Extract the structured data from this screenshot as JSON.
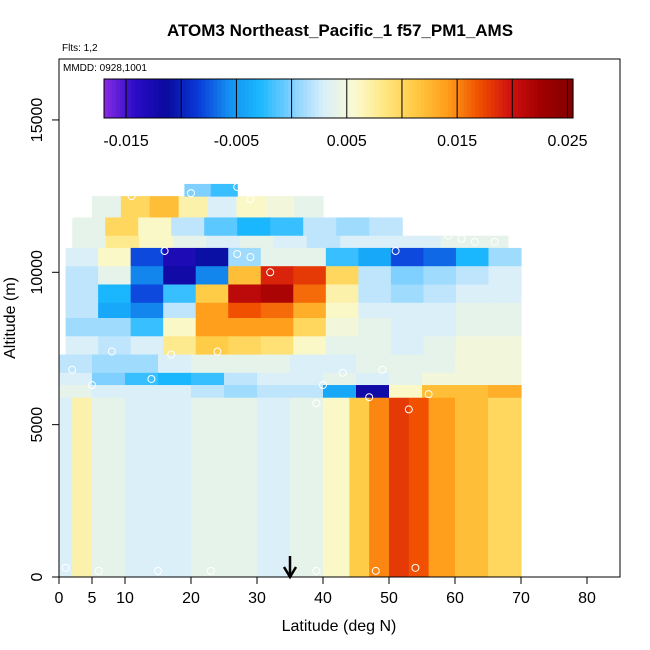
{
  "chart_data": {
    "type": "heatmap",
    "title": "ATOM3 Northeast_Pacific_1 f57_PM1_AMS",
    "flights_note": "Flts: 1,2",
    "date_note": "MMDD: 0928,1001",
    "xlabel": "Latitude (deg N)",
    "ylabel": "Altitude (m)",
    "xlim": [
      0,
      85
    ],
    "ylim": [
      0,
      17000
    ],
    "x_ticks": [
      0,
      5,
      10,
      20,
      30,
      40,
      50,
      60,
      70,
      80
    ],
    "y_ticks": [
      0,
      5000,
      10000,
      15000
    ],
    "colorbar": {
      "range": [
        -0.017,
        0.0255
      ],
      "tick_values": [
        -0.015,
        -0.005,
        0.005,
        0.015,
        0.025
      ],
      "tick_labels": [
        "-0.015",
        "-0.005",
        "0.005",
        "0.015",
        "0.025"
      ],
      "colors": [
        "#8a2be2",
        "#2a0cc8",
        "#0a0a9c",
        "#0a3ad8",
        "#1490f0",
        "#1ab8ff",
        "#7fd0ff",
        "#d8eefa",
        "#fafad2",
        "#ffe680",
        "#ffc840",
        "#ff9c1a",
        "#f05000",
        "#d01010",
        "#a00000",
        "#800000"
      ]
    },
    "marker_latitude": 35,
    "layers": [
      {
        "alt": [
          11800,
          12500
        ],
        "lat": [
          5,
          40
        ],
        "values": [
          0.004,
          0.01,
          0.012,
          0.007,
          0.003,
          0.006,
          0.005,
          0.004
        ]
      },
      {
        "alt": [
          12500,
          12900
        ],
        "lat": [
          19,
          27
        ],
        "values": [
          0.0,
          -0.002
        ]
      },
      {
        "alt": [
          11200,
          11800
        ],
        "lat": [
          2,
          52
        ],
        "values": [
          0.004,
          0.01,
          0.006,
          0.002,
          -0.001,
          -0.003,
          -0.002,
          0.002,
          0.001,
          0.002
        ]
      },
      {
        "alt": [
          10800,
          11200
        ],
        "lat": [
          2,
          68
        ],
        "values": [
          0.004,
          0.008,
          0.006,
          0.004,
          0.003,
          0.004,
          0.003,
          0.002,
          0.003,
          0.003,
          0.003,
          0.004,
          0.004
        ]
      },
      {
        "alt": [
          10200,
          10800
        ],
        "lat": [
          1,
          70
        ],
        "values": [
          0.003,
          0.006,
          -0.008,
          -0.013,
          -0.011,
          0.001,
          0.004,
          0.004,
          -0.002,
          -0.004,
          -0.008,
          -0.007,
          -0.003,
          0.001
        ]
      },
      {
        "alt": [
          9600,
          10200
        ],
        "lat": [
          1,
          70
        ],
        "values": [
          0.002,
          0.004,
          -0.006,
          -0.012,
          -0.006,
          0.012,
          0.019,
          0.018,
          0.01,
          0.002,
          0.0,
          0.001,
          0.002,
          0.003
        ]
      },
      {
        "alt": [
          9000,
          9600
        ],
        "lat": [
          1,
          70
        ],
        "values": [
          0.002,
          -0.003,
          -0.008,
          -0.002,
          0.011,
          0.021,
          0.022,
          0.016,
          0.007,
          0.002,
          0.001,
          0.002,
          0.003,
          0.003
        ]
      },
      {
        "alt": [
          8500,
          9000
        ],
        "lat": [
          1,
          70
        ],
        "values": [
          0.002,
          -0.004,
          -0.006,
          0.002,
          0.014,
          0.017,
          0.016,
          0.013,
          0.006,
          0.003,
          0.003,
          0.003,
          0.004,
          0.004
        ]
      },
      {
        "alt": [
          7900,
          8500
        ],
        "lat": [
          1,
          70
        ],
        "values": [
          0.001,
          0.001,
          -0.002,
          0.006,
          0.014,
          0.014,
          0.014,
          0.01,
          0.005,
          0.004,
          0.003,
          0.003,
          0.004,
          0.004
        ]
      },
      {
        "alt": [
          7300,
          7900
        ],
        "lat": [
          1,
          70
        ],
        "values": [
          0.003,
          0.002,
          0.003,
          0.008,
          0.011,
          0.01,
          0.009,
          0.006,
          0.004,
          0.004,
          0.003,
          0.004,
          0.005,
          0.005
        ]
      },
      {
        "alt": [
          6700,
          7300
        ],
        "lat": [
          0,
          70
        ],
        "values": [
          0.002,
          0.001,
          0.001,
          0.003,
          0.004,
          0.004,
          0.004,
          0.003,
          0.003,
          0.004,
          0.004,
          0.004,
          0.005,
          0.005
        ]
      },
      {
        "alt": [
          6300,
          6700
        ],
        "lat": [
          0,
          70
        ],
        "values": [
          0.003,
          0.0,
          -0.002,
          -0.003,
          -0.002,
          0.002,
          0.003,
          0.003,
          0.004,
          0.003,
          0.004,
          0.005,
          0.005,
          0.005
        ]
      },
      {
        "alt": [
          5900,
          6300
        ],
        "lat": [
          0,
          70
        ],
        "values": [
          0.004,
          0.003,
          0.003,
          0.003,
          0.002,
          0.001,
          0.002,
          0.002,
          -0.004,
          -0.012,
          0.006,
          0.012,
          0.012,
          0.013
        ]
      }
    ],
    "lower_region": {
      "alt": [
        0,
        5900
      ],
      "lat_bins": [
        0,
        2,
        5,
        10,
        15,
        20,
        25,
        30,
        35,
        40,
        44,
        47,
        50,
        53,
        56,
        60,
        65,
        70
      ],
      "values": [
        0.003,
        0.007,
        0.004,
        0.003,
        0.003,
        0.004,
        0.004,
        0.003,
        0.004,
        0.006,
        0.011,
        0.015,
        0.018,
        0.017,
        0.014,
        0.012,
        0.01
      ]
    },
    "sample_points": [
      {
        "lat": 11,
        "alt": 12500
      },
      {
        "lat": 20,
        "alt": 12600
      },
      {
        "lat": 27,
        "alt": 12800
      },
      {
        "lat": 29,
        "alt": 12400
      },
      {
        "lat": 2,
        "alt": 11900
      },
      {
        "lat": 16,
        "alt": 10700
      },
      {
        "lat": 27,
        "alt": 10600
      },
      {
        "lat": 29,
        "alt": 10500
      },
      {
        "lat": 32,
        "alt": 10000
      },
      {
        "lat": 51,
        "alt": 10700
      },
      {
        "lat": 59,
        "alt": 11200
      },
      {
        "lat": 61,
        "alt": 11100
      },
      {
        "lat": 63,
        "alt": 11000
      },
      {
        "lat": 66,
        "alt": 11000
      },
      {
        "lat": 8,
        "alt": 7400
      },
      {
        "lat": 17,
        "alt": 7300
      },
      {
        "lat": 24,
        "alt": 7400
      },
      {
        "lat": 2,
        "alt": 6800
      },
      {
        "lat": 5,
        "alt": 6300
      },
      {
        "lat": 14,
        "alt": 6500
      },
      {
        "lat": 43,
        "alt": 6700
      },
      {
        "lat": 49,
        "alt": 6800
      },
      {
        "lat": 40,
        "alt": 6300
      },
      {
        "lat": 39,
        "alt": 5700
      },
      {
        "lat": 47,
        "alt": 5900
      },
      {
        "lat": 53,
        "alt": 5500
      },
      {
        "lat": 56,
        "alt": 6000
      },
      {
        "lat": 1,
        "alt": 300
      },
      {
        "lat": 6,
        "alt": 200
      },
      {
        "lat": 15,
        "alt": 200
      },
      {
        "lat": 23,
        "alt": 200
      },
      {
        "lat": 39,
        "alt": 200
      },
      {
        "lat": 48,
        "alt": 200
      },
      {
        "lat": 54,
        "alt": 300
      }
    ]
  }
}
